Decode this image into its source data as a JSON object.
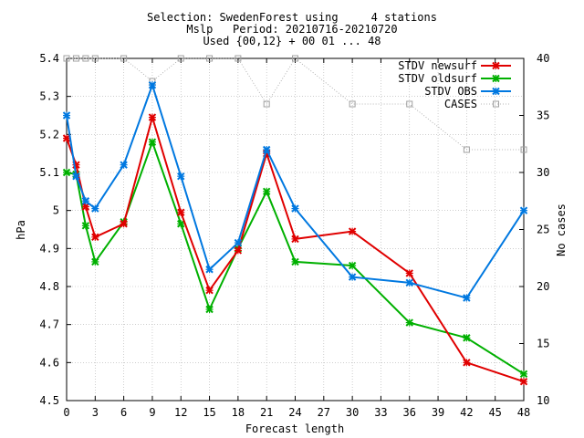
{
  "chart_data": {
    "type": "line",
    "title_lines": [
      "Selection: SwedenForest using     4 stations",
      "Mslp   Period: 20210716-20210720",
      "Used {00,12} + 00 01 ... 48"
    ],
    "xlabel": "Forecast length",
    "ylabel": "hPa",
    "y2label": "No cases",
    "xlim": [
      0,
      48
    ],
    "ylim": [
      4.5,
      5.4
    ],
    "y2lim": [
      10,
      40
    ],
    "x_ticks": [
      "0",
      "3",
      "6",
      "9",
      "12",
      "15",
      "18",
      "21",
      "24",
      "27",
      "30",
      "33",
      "36",
      "39",
      "42",
      "45",
      "48"
    ],
    "y_ticks": [
      "4.5",
      "4.6",
      "4.7",
      "4.8",
      "4.9",
      "5",
      "5.1",
      "5.2",
      "5.3",
      "5.4"
    ],
    "y2_ticks": [
      "10",
      "15",
      "20",
      "25",
      "30",
      "35",
      "40"
    ],
    "legend_position": "top-right",
    "grid": true,
    "series": [
      {
        "name": "STDV newsurf",
        "color": "#e00000",
        "marker": "x",
        "axis": "left",
        "x": [
          0,
          1,
          2,
          3,
          6,
          9,
          12,
          15,
          18,
          21,
          24,
          30,
          36,
          42,
          48
        ],
        "values": [
          5.19,
          5.12,
          5.01,
          4.93,
          4.965,
          5.245,
          4.995,
          4.79,
          4.895,
          5.15,
          4.925,
          4.945,
          4.835,
          4.6,
          4.55
        ]
      },
      {
        "name": "STDV oldsurf",
        "color": "#00b000",
        "marker": "x",
        "axis": "left",
        "x": [
          0,
          1,
          2,
          3,
          6,
          9,
          12,
          15,
          18,
          21,
          24,
          30,
          36,
          42,
          48
        ],
        "values": [
          5.1,
          5.095,
          4.96,
          4.865,
          4.97,
          5.18,
          4.965,
          4.74,
          4.9,
          5.05,
          4.865,
          4.855,
          4.705,
          4.665,
          4.57
        ]
      },
      {
        "name": "STDV OBS",
        "color": "#0078e0",
        "marker": "x",
        "axis": "left",
        "x": [
          0,
          1,
          2,
          3,
          6,
          9,
          12,
          15,
          18,
          21,
          24,
          30,
          36,
          42,
          48
        ],
        "values": [
          5.25,
          5.09,
          5.025,
          5.005,
          5.12,
          5.33,
          5.09,
          4.845,
          4.915,
          5.16,
          5.005,
          4.825,
          4.81,
          4.77,
          5.0
        ]
      },
      {
        "name": "CASES",
        "color": "#a0a0a0",
        "marker": "square",
        "axis": "right",
        "x": [
          0,
          1,
          2,
          3,
          6,
          9,
          12,
          15,
          18,
          21,
          24,
          30,
          36,
          42,
          48
        ],
        "values": [
          40,
          40,
          40,
          40,
          40,
          38,
          40,
          40,
          40,
          36,
          40,
          36,
          36,
          32,
          32
        ]
      }
    ]
  }
}
